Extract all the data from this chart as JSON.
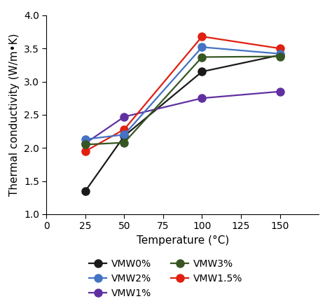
{
  "title": "",
  "xlabel": "Temperature (°C)",
  "ylabel": "Thermal conductivity (W/m•K)",
  "xlim": [
    0,
    175
  ],
  "ylim": [
    1.0,
    4.0
  ],
  "xticks": [
    0,
    25,
    50,
    75,
    100,
    125,
    150
  ],
  "yticks": [
    1.0,
    1.5,
    2.0,
    2.5,
    3.0,
    3.5,
    4.0
  ],
  "series": [
    {
      "label": "VMW0%",
      "color": "#1a1a1a",
      "x": [
        25,
        50,
        100,
        150
      ],
      "y": [
        1.35,
        2.18,
        3.15,
        3.4
      ]
    },
    {
      "label": "VMW1%",
      "color": "#6030a0",
      "x": [
        25,
        50,
        100,
        150
      ],
      "y": [
        2.07,
        2.47,
        2.75,
        2.85
      ]
    },
    {
      "label": "VMW1.5%",
      "color": "#e02010",
      "x": [
        25,
        50,
        100,
        150
      ],
      "y": [
        1.95,
        2.28,
        3.68,
        3.5
      ]
    },
    {
      "label": "VMW2%",
      "color": "#4472c4",
      "x": [
        25,
        50,
        100,
        150
      ],
      "y": [
        2.13,
        2.2,
        3.52,
        3.42
      ]
    },
    {
      "label": "VMW3%",
      "color": "#375623",
      "x": [
        25,
        50,
        100,
        150
      ],
      "y": [
        2.05,
        2.08,
        3.37,
        3.38
      ]
    }
  ],
  "legend_order": [
    0,
    3,
    1,
    4,
    2
  ],
  "marker": "o",
  "markersize": 8,
  "linewidth": 1.6,
  "background_color": "#ffffff",
  "tick_fontsize": 10,
  "label_fontsize": 11,
  "legend_fontsize": 10
}
